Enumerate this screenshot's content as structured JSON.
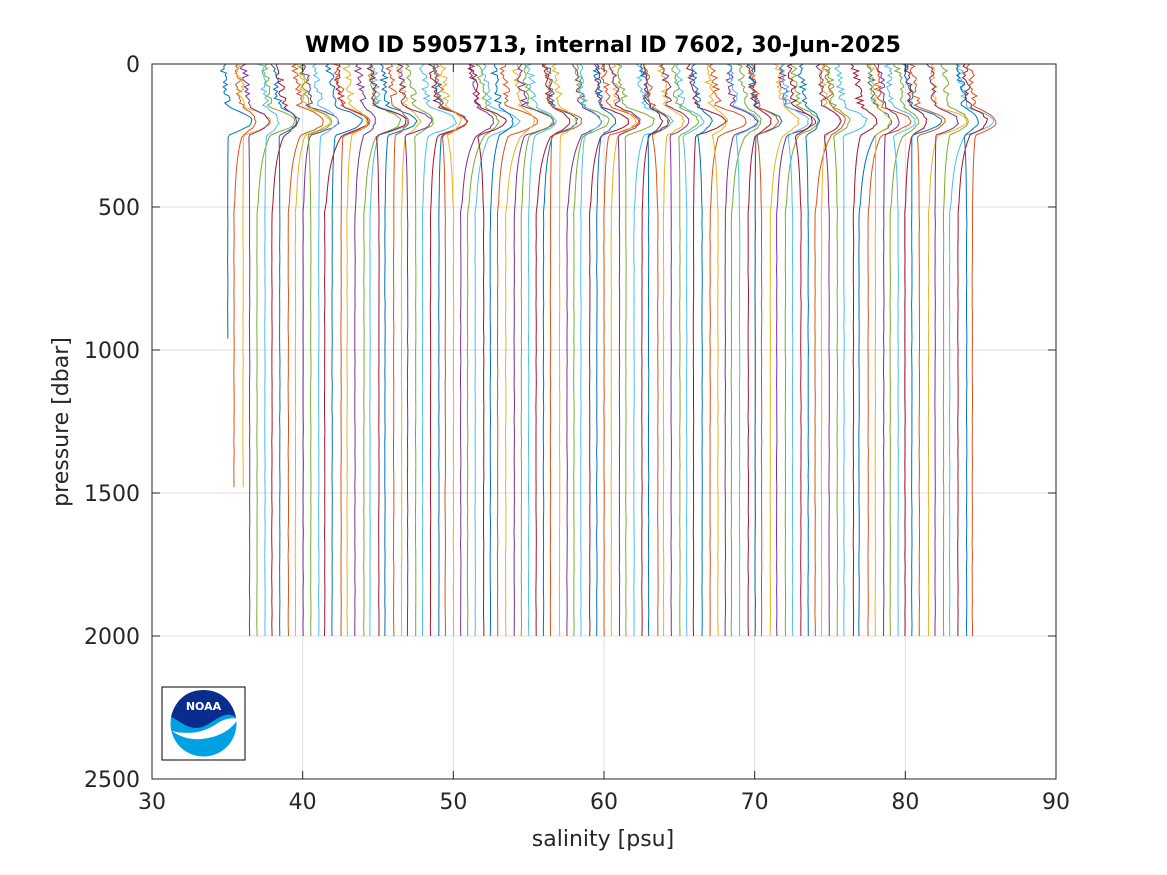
{
  "chart_data": {
    "type": "line",
    "title": "WMO ID 5905713, internal ID 7602, 30-Jun-2025",
    "xlabel": "salinity [psu]",
    "ylabel": "pressure [dbar]",
    "xlim": [
      30,
      90
    ],
    "ylim": [
      0,
      2500
    ],
    "y_reversed": true,
    "grid": true,
    "legend": "none",
    "x_ticks": [
      "30",
      "40",
      "50",
      "60",
      "70",
      "80",
      "90"
    ],
    "y_ticks": [
      "0",
      "500",
      "1000",
      "1500",
      "2000",
      "2500"
    ],
    "colors": [
      "#0072BD",
      "#D95319",
      "#EDB120",
      "#7E2F8E",
      "#77AC30",
      "#4DBEEE",
      "#A2142F"
    ],
    "profiles": {
      "count": 100,
      "offset_per_profile_psu": 0.5,
      "first_deep_salinity": 35.0,
      "surface_salinity_range": [
        35.0,
        36.5
      ],
      "max_pressure_dbar": 2000,
      "short_profiles": [
        {
          "index": 0,
          "max_pressure_dbar": 980
        },
        {
          "index": 1,
          "max_pressure_dbar": 1510
        },
        {
          "index": 2,
          "max_pressure_dbar": 1500
        }
      ]
    }
  },
  "logo": {
    "name": "NOAA",
    "text": "NOAA",
    "colors": {
      "dark": "#0a2c8c",
      "light": "#00a0e4"
    }
  }
}
